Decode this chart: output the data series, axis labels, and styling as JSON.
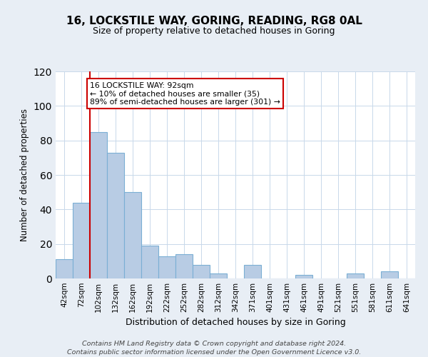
{
  "title": "16, LOCKSTILE WAY, GORING, READING, RG8 0AL",
  "subtitle": "Size of property relative to detached houses in Goring",
  "xlabel": "Distribution of detached houses by size in Goring",
  "ylabel": "Number of detached properties",
  "bar_labels": [
    "42sqm",
    "72sqm",
    "102sqm",
    "132sqm",
    "162sqm",
    "192sqm",
    "222sqm",
    "252sqm",
    "282sqm",
    "312sqm",
    "342sqm",
    "371sqm",
    "401sqm",
    "431sqm",
    "461sqm",
    "491sqm",
    "521sqm",
    "551sqm",
    "581sqm",
    "611sqm",
    "641sqm"
  ],
  "bar_values": [
    11,
    44,
    85,
    73,
    50,
    19,
    13,
    14,
    8,
    3,
    0,
    8,
    0,
    0,
    2,
    0,
    0,
    3,
    0,
    4,
    0
  ],
  "bar_color": "#b8cce4",
  "bar_edge_color": "#7BAFD4",
  "vline_index": 2,
  "vline_color": "#cc0000",
  "annotation_text": "16 LOCKSTILE WAY: 92sqm\n← 10% of detached houses are smaller (35)\n89% of semi-detached houses are larger (301) →",
  "annotation_box_color": "#ffffff",
  "annotation_box_edge": "#cc0000",
  "ylim": [
    0,
    120
  ],
  "yticks": [
    0,
    20,
    40,
    60,
    80,
    100,
    120
  ],
  "footer_line1": "Contains HM Land Registry data © Crown copyright and database right 2024.",
  "footer_line2": "Contains public sector information licensed under the Open Government Licence v3.0.",
  "bg_color": "#e8eef5",
  "plot_bg_color": "#ffffff"
}
